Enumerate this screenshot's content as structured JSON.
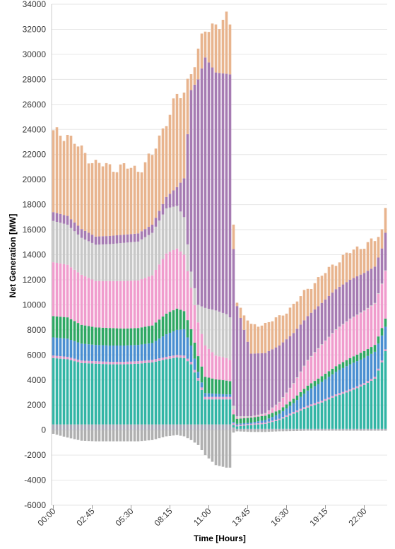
{
  "chart_data": {
    "type": "bar",
    "stacked": true,
    "title": "",
    "xlabel": "Time [Hours]",
    "ylabel": "Net Generation [MW]",
    "ylim": [
      -6000,
      34000
    ],
    "yticks": [
      "-6000",
      "-4000",
      "-2000",
      "0",
      "2000",
      "4000",
      "6000",
      "8000",
      "10000",
      "12000",
      "14000",
      "16000",
      "18000",
      "20000",
      "22000",
      "24000",
      "26000",
      "28000",
      "30000",
      "32000",
      "34000"
    ],
    "xtick_labels": [
      "00:00",
      "02:45",
      "05:30",
      "08:15",
      "11:00",
      "13:45",
      "16:30",
      "19:15",
      "22:00"
    ],
    "grid": true,
    "interval_minutes": 15,
    "bar_count": 95,
    "layer_colors": {
      "negative": "#b0b0b0",
      "base": "#a9a9b8",
      "teal": "#32b5a5",
      "pink_thin": "#d895c8",
      "blue": "#4a8fd1",
      "green": "#2fa864",
      "pink": "#f09ccd",
      "grey": "#c8c8c8",
      "purple": "#a67bb2",
      "tan": "#e8b48e"
    },
    "series_note_keys": [
      "negative",
      "base",
      "teal",
      "pink_thin",
      "blue",
      "green",
      "pink",
      "grey",
      "purple",
      "tan"
    ],
    "keyframes": [
      {
        "i": 0,
        "neg": -300,
        "base": 450,
        "teal": 5300,
        "pthin": 200,
        "blue": 1450,
        "green": 1700,
        "pink": 4300,
        "grey": 3300,
        "purple": 700,
        "total": 23700
      },
      {
        "i": 4,
        "neg": -600,
        "base": 450,
        "teal": 5200,
        "pthin": 200,
        "blue": 1450,
        "green": 1700,
        "pink": 4200,
        "grey": 3200,
        "purple": 700,
        "total": 23600
      },
      {
        "i": 8,
        "neg": -850,
        "base": 450,
        "teal": 4900,
        "pthin": 200,
        "blue": 1350,
        "green": 1500,
        "pink": 4000,
        "grey": 2950,
        "purple": 700,
        "total": 22300
      },
      {
        "i": 12,
        "neg": -900,
        "base": 450,
        "teal": 4850,
        "pthin": 200,
        "blue": 1300,
        "green": 1400,
        "pink": 3700,
        "grey": 2900,
        "purple": 650,
        "total": 21300
      },
      {
        "i": 16,
        "neg": -900,
        "base": 450,
        "teal": 4800,
        "pthin": 200,
        "blue": 1300,
        "green": 1400,
        "pink": 3750,
        "grey": 2950,
        "purple": 650,
        "total": 21000
      },
      {
        "i": 20,
        "neg": -900,
        "base": 450,
        "teal": 4800,
        "pthin": 200,
        "blue": 1300,
        "green": 1350,
        "pink": 3800,
        "grey": 3050,
        "purple": 650,
        "total": 21000
      },
      {
        "i": 24,
        "neg": -900,
        "base": 450,
        "teal": 4850,
        "pthin": 200,
        "blue": 1300,
        "green": 1350,
        "pink": 3800,
        "grey": 3100,
        "purple": 650,
        "total": 20800
      },
      {
        "i": 28,
        "neg": -800,
        "base": 450,
        "teal": 4950,
        "pthin": 200,
        "blue": 1350,
        "green": 1400,
        "pink": 4000,
        "grey": 3400,
        "purple": 650,
        "total": 21900
      },
      {
        "i": 32,
        "neg": -500,
        "base": 450,
        "teal": 5200,
        "pthin": 200,
        "blue": 1800,
        "green": 1650,
        "pink": 4800,
        "grey": 3600,
        "purple": 900,
        "total": 24800
      },
      {
        "i": 35,
        "neg": -400,
        "base": 450,
        "teal": 5350,
        "pthin": 200,
        "blue": 2000,
        "green": 1700,
        "pink": 4800,
        "grey": 3400,
        "purple": 1500,
        "total": 26500
      },
      {
        "i": 37,
        "neg": -500,
        "base": 450,
        "teal": 5300,
        "pthin": 200,
        "blue": 2100,
        "green": 1450,
        "pink": 4500,
        "grey": 3000,
        "purple": 3100,
        "total": 27000
      },
      {
        "i": 39,
        "neg": -800,
        "base": 450,
        "teal": 4800,
        "pthin": 200,
        "blue": 1300,
        "green": 1300,
        "pink": 3300,
        "grey": 1300,
        "purple": 14500,
        "total": 28800
      },
      {
        "i": 41,
        "neg": -1200,
        "base": 450,
        "teal": 3500,
        "pthin": 200,
        "blue": 500,
        "green": 1250,
        "pink": 2700,
        "grey": 1400,
        "purple": 18000,
        "total": 30000
      },
      {
        "i": 43,
        "neg": -2000,
        "base": 450,
        "teal": 2000,
        "pthin": 200,
        "blue": 300,
        "green": 1300,
        "pink": 2500,
        "grey": 3000,
        "purple": 20000,
        "total": 32000
      },
      {
        "i": 46,
        "neg": -2800,
        "base": 450,
        "teal": 2000,
        "pthin": 200,
        "blue": 250,
        "green": 1150,
        "pink": 1900,
        "grey": 3600,
        "purple": 19000,
        "total": 32500
      },
      {
        "i": 49,
        "neg": -3000,
        "base": 450,
        "teal": 2000,
        "pthin": 200,
        "blue": 200,
        "green": 1100,
        "pink": 1800,
        "grey": 3500,
        "purple": 19200,
        "total": 32600
      },
      {
        "i": 50,
        "neg": -3000,
        "base": 450,
        "teal": 2000,
        "pthin": 200,
        "blue": 200,
        "green": 1050,
        "pink": 1700,
        "grey": 3400,
        "purple": 19400,
        "total": 32300
      },
      {
        "i": 51,
        "neg": -200,
        "base": 200,
        "teal": 200,
        "pthin": 150,
        "blue": 100,
        "green": 600,
        "pink": 400,
        "grey": 300,
        "purple": 12500,
        "total": 16700
      },
      {
        "i": 52,
        "neg": -100,
        "base": 100,
        "teal": 200,
        "pthin": 100,
        "blue": 100,
        "green": 400,
        "pink": 100,
        "grey": 100,
        "purple": 8800,
        "total": 10200
      },
      {
        "i": 56,
        "neg": -150,
        "base": 100,
        "teal": 300,
        "pthin": 100,
        "blue": 100,
        "green": 400,
        "pink": 50,
        "grey": 50,
        "purple": 5000,
        "total": 8300
      },
      {
        "i": 60,
        "neg": -150,
        "base": 100,
        "teal": 400,
        "pthin": 100,
        "blue": 200,
        "green": 350,
        "pink": 150,
        "grey": 50,
        "purple": 4800,
        "total": 8500
      },
      {
        "i": 64,
        "neg": -100,
        "base": 100,
        "teal": 700,
        "pthin": 100,
        "blue": 400,
        "green": 300,
        "pink": 600,
        "grey": 50,
        "purple": 4500,
        "total": 9000
      },
      {
        "i": 68,
        "neg": -80,
        "base": 100,
        "teal": 1200,
        "pthin": 150,
        "blue": 700,
        "green": 350,
        "pink": 1200,
        "grey": 50,
        "purple": 4000,
        "total": 10000
      },
      {
        "i": 72,
        "neg": -50,
        "base": 100,
        "teal": 1700,
        "pthin": 150,
        "blue": 1200,
        "green": 400,
        "pink": 2000,
        "grey": 50,
        "purple": 3500,
        "total": 11300
      },
      {
        "i": 76,
        "neg": -50,
        "base": 100,
        "teal": 2100,
        "pthin": 150,
        "blue": 1500,
        "green": 450,
        "pink": 2500,
        "grey": 50,
        "purple": 3300,
        "total": 12300
      },
      {
        "i": 80,
        "neg": -50,
        "base": 100,
        "teal": 2600,
        "pthin": 150,
        "blue": 1800,
        "green": 450,
        "pink": 2900,
        "grey": 50,
        "purple": 3200,
        "total": 13400
      },
      {
        "i": 84,
        "neg": -50,
        "base": 100,
        "teal": 3000,
        "pthin": 150,
        "blue": 2000,
        "green": 500,
        "pink": 3100,
        "grey": 50,
        "purple": 3100,
        "total": 14200
      },
      {
        "i": 88,
        "neg": -50,
        "base": 100,
        "teal": 3500,
        "pthin": 150,
        "blue": 2000,
        "green": 550,
        "pink": 3200,
        "grey": 50,
        "purple": 3000,
        "total": 14800
      },
      {
        "i": 91,
        "neg": -50,
        "base": 100,
        "teal": 4000,
        "pthin": 150,
        "blue": 2000,
        "green": 550,
        "pink": 3300,
        "grey": 50,
        "purple": 2900,
        "total": 15100
      },
      {
        "i": 93,
        "neg": -50,
        "base": 100,
        "teal": 5300,
        "pthin": 150,
        "blue": 2000,
        "green": 600,
        "pink": 3500,
        "grey": 50,
        "purple": 2800,
        "total": 15900
      },
      {
        "i": 94,
        "neg": -50,
        "base": 100,
        "teal": 6200,
        "pthin": 150,
        "blue": 1800,
        "green": 650,
        "pink": 3800,
        "grey": 50,
        "purple": 3000,
        "total": 17800
      }
    ]
  }
}
